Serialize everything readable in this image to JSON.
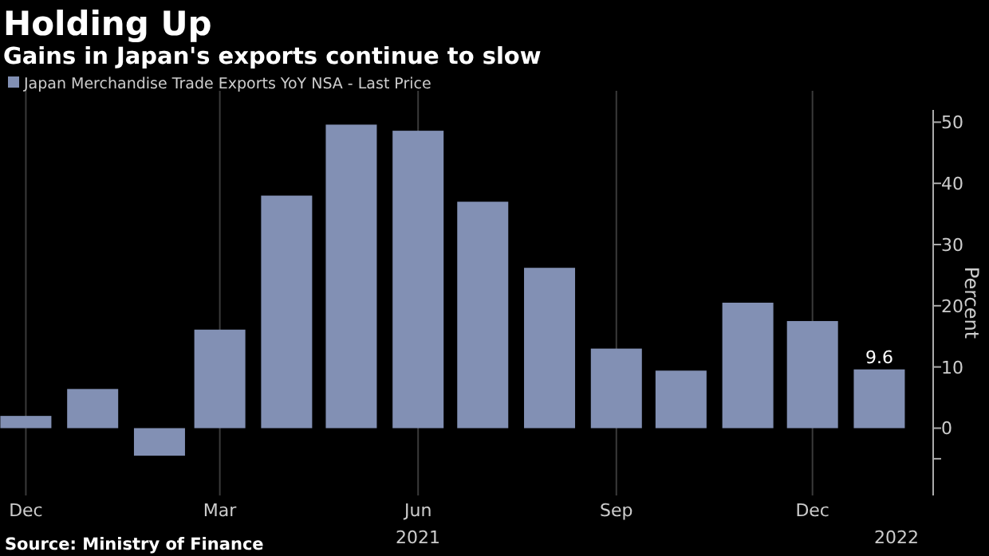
{
  "chart_data": {
    "type": "bar",
    "title": "Holding Up",
    "subtitle": "Gains in Japan's exports continue to slow",
    "ylabel": "Percent",
    "x": [
      "2020-12",
      "2021-01",
      "2021-02",
      "2021-03",
      "2021-04",
      "2021-05",
      "2021-06",
      "2021-07",
      "2021-08",
      "2021-09",
      "2021-10",
      "2021-11",
      "2021-12",
      "2022-01"
    ],
    "xlim": [
      "2020-11-19",
      "2022-01-26"
    ],
    "xticks": [
      {
        "value": "2020-12",
        "label": "Dec"
      },
      {
        "value": "2021-03",
        "label": "Mar"
      },
      {
        "value": "2021-06",
        "label": "Jun"
      },
      {
        "value": "2021-09",
        "label": "Sep"
      },
      {
        "value": "2021-12",
        "label": "Dec"
      }
    ],
    "series": [
      {
        "name": "Japan Merchandise Trade Exports YoY NSA - Last Price",
        "color": "#8290b4",
        "values": [
          2.0,
          6.4,
          -4.5,
          16.1,
          38.0,
          49.6,
          48.6,
          37.0,
          26.2,
          13.0,
          9.4,
          20.5,
          17.5,
          9.6
        ],
        "value_labels": [
          null,
          null,
          null,
          null,
          null,
          null,
          null,
          null,
          null,
          null,
          null,
          null,
          null,
          "9.6"
        ]
      }
    ],
    "ylim": [
      -11,
      52
    ],
    "yticks": [
      {
        "value": -5,
        "label": null
      },
      0,
      10,
      20,
      30,
      40,
      50
    ],
    "grid": "x",
    "legend": "top left",
    "annotations": [
      "2021",
      "2022",
      "Source: Ministry of Finance"
    ]
  }
}
